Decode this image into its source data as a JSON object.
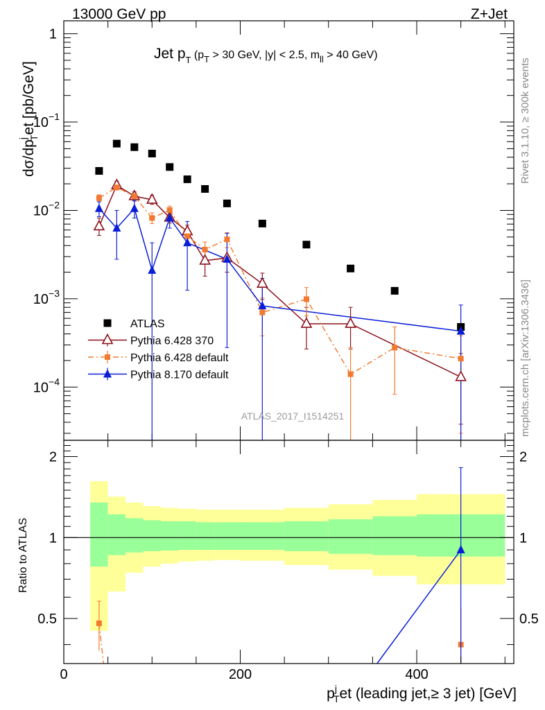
{
  "header": {
    "left": "13000 GeV pp",
    "right": "Z+Jet"
  },
  "side_texts": {
    "rivet": "Rivet 3.1.10, ≥ 300k events",
    "mcplots": "mcplots.cern.ch [arXiv:1306.3436]"
  },
  "watermark": "ATLAS_2017_I1514251",
  "chart_data": [
    {
      "type": "scatter",
      "title_parts": {
        "main": "Jet p",
        "main_sub": "T",
        "cond_open": " (p",
        "cond_sub1": "T",
        "cond_mid": " > 30 GeV, |y| < 2.5, m",
        "cond_sub2": "ll",
        "cond_close": " > 40 GeV)"
      },
      "ylabel": "dσ/dpᵀʲet [pb/GeV]",
      "ylabel_parts": [
        "dσ/dp",
        "j",
        "T",
        "et [pb/GeV]"
      ],
      "y_scale": "log",
      "xlim": [
        0,
        510
      ],
      "ylim": [
        2.5e-05,
        1.4
      ],
      "y_ticks": [
        {
          "value": 1,
          "label": "1"
        },
        {
          "value": 0.1,
          "base": "10",
          "exp": "−1"
        },
        {
          "value": 0.01,
          "base": "10",
          "exp": "−2"
        },
        {
          "value": 0.001,
          "base": "10",
          "exp": "−3"
        },
        {
          "value": 0.0001,
          "base": "10",
          "exp": "−4"
        }
      ],
      "legend_position": "middle-left",
      "series": [
        {
          "name": "ATLAS",
          "color": "#000000",
          "marker": "filled-square",
          "x": [
            40,
            60,
            80,
            100,
            120,
            140,
            160,
            185,
            225,
            275,
            325,
            375,
            450
          ],
          "y": [
            0.028,
            0.057,
            0.052,
            0.044,
            0.031,
            0.0225,
            0.0175,
            0.012,
            0.0071,
            0.0041,
            0.0022,
            0.00123,
            0.00048
          ]
        },
        {
          "name": "Pythia 6.428 370",
          "color": "#8b0f1a",
          "marker": "open-triangle",
          "line": "solid",
          "x": [
            40,
            60,
            80,
            100,
            120,
            140,
            160,
            185,
            225,
            275,
            325,
            450
          ],
          "y": [
            0.0066,
            0.0193,
            0.0145,
            0.0132,
            0.0083,
            0.0058,
            0.0027,
            0.0029,
            0.00148,
            0.00052,
            0.00052,
            0.00013
          ],
          "y_lo": [
            0.0052,
            0.0172,
            0.0128,
            0.0117,
            0.0072,
            0.0048,
            0.0018,
            0.002,
            0.00098,
            0.00027,
            0.00027,
            3.8e-05
          ],
          "y_hi": [
            0.0082,
            0.0214,
            0.0162,
            0.0148,
            0.0095,
            0.0068,
            0.0036,
            0.0038,
            0.00195,
            0.0008,
            0.0008,
            0.00024
          ]
        },
        {
          "name": "Pythia 6.428 default",
          "color": "#f27a30",
          "marker": "filled-square-small",
          "line": "dash-dot",
          "x": [
            40,
            60,
            80,
            100,
            120,
            140,
            160,
            185,
            225,
            275,
            325,
            375,
            450
          ],
          "y": [
            0.0138,
            0.0182,
            0.0145,
            0.0082,
            0.0101,
            0.0051,
            0.0036,
            0.0047,
            0.0007,
            0.00099,
            0.00014,
            0.00028,
            0.00021
          ],
          "y_lo": [
            0.0128,
            0.017,
            0.0133,
            0.0071,
            0.009,
            0.0043,
            0.0029,
            0.0038,
            0.00038,
            0.00064,
            2e-05,
            8.3e-05,
            3e-05
          ],
          "y_hi": [
            0.015,
            0.0195,
            0.0157,
            0.0094,
            0.0112,
            0.006,
            0.0044,
            0.0056,
            0.00102,
            0.00134,
            0.00028,
            0.00048,
            0.00038
          ]
        },
        {
          "name": "Pythia 8.170 default",
          "color": "#0a1ed6",
          "marker": "filled-triangle",
          "line": "solid",
          "x": [
            40,
            60,
            80,
            100,
            120,
            140,
            185,
            225,
            450
          ],
          "y": [
            0.0105,
            0.0063,
            0.0105,
            0.0021,
            0.0082,
            0.0043,
            0.0028,
            0.00083,
            0.00043
          ],
          "y_lo": [
            0.0085,
            0.0028,
            0.0082,
            1e-05,
            0.0063,
            0.00125,
            0.00028,
            1e-05,
            2e-05
          ],
          "y_hi": [
            0.0125,
            0.01,
            0.0128,
            0.0043,
            0.0101,
            0.0075,
            0.0055,
            0.0017,
            0.00085
          ]
        }
      ]
    },
    {
      "type": "scatter",
      "ylabel": "Ratio to ATLAS",
      "xlabel_parts": [
        "p",
        "j",
        "T",
        "et (leading jet,≥ 3 jet) [GeV]"
      ],
      "xlim": [
        0,
        510
      ],
      "ylim": [
        0.34,
        2.3
      ],
      "x_ticks": [
        0,
        200,
        400
      ],
      "y_ticks": [
        0.5,
        1,
        2
      ],
      "y_tick_labels": [
        "0.5",
        "1",
        "2"
      ],
      "bands": {
        "edges": [
          30,
          50,
          70,
          90,
          110,
          130,
          150,
          170,
          200,
          250,
          300,
          350,
          400,
          500
        ],
        "green_lo": [
          0.78,
          0.86,
          0.88,
          0.89,
          0.895,
          0.9,
          0.9,
          0.9,
          0.9,
          0.89,
          0.87,
          0.86,
          0.85
        ],
        "green_hi": [
          1.35,
          1.22,
          1.18,
          1.16,
          1.15,
          1.15,
          1.14,
          1.14,
          1.14,
          1.15,
          1.17,
          1.2,
          1.22
        ],
        "yellow_lo": [
          0.45,
          0.63,
          0.74,
          0.78,
          0.8,
          0.815,
          0.82,
          0.825,
          0.82,
          0.79,
          0.76,
          0.72,
          0.67
        ],
        "yellow_hi": [
          1.62,
          1.42,
          1.35,
          1.31,
          1.29,
          1.28,
          1.27,
          1.27,
          1.27,
          1.29,
          1.33,
          1.38,
          1.45
        ]
      },
      "series": [
        {
          "name": "Pythia 6.428 default",
          "color": "#f27a30",
          "x": [
            40,
            45
          ],
          "y": [
            0.48,
            0.32
          ],
          "y_lo": [
            0.38,
            0.3
          ],
          "y_hi": [
            0.58,
            0.34
          ],
          "extra_points": [
            {
              "x": 450,
              "y": 0.4,
              "hi": 0.55
            }
          ]
        },
        {
          "name": "Pythia 8.170 default",
          "color": "#0a1ed6",
          "x": [
            355,
            450
          ],
          "y": [
            0.34,
            0.9
          ],
          "y_lo": [
            null,
            0.06
          ],
          "y_hi": [
            null,
            1.82
          ]
        }
      ]
    }
  ]
}
